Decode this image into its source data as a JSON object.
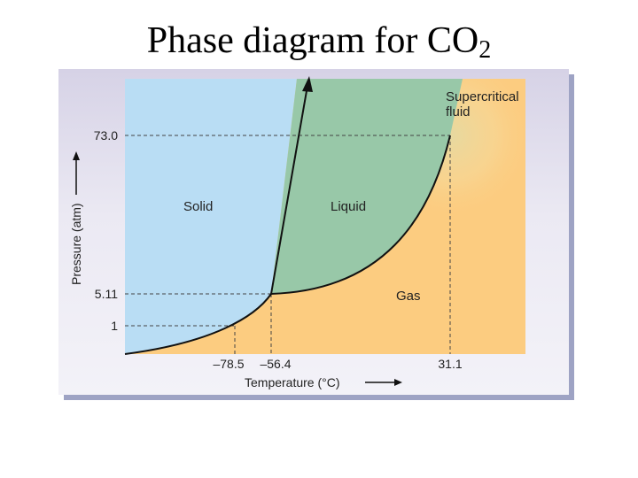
{
  "title": {
    "main": "Phase diagram for CO",
    "subscript": "2"
  },
  "axes": {
    "xlabel": "Temperature (°C)",
    "ylabel": "Pressure (atm)",
    "x_ticks": [
      "–78.5",
      "–56.4",
      "31.1"
    ],
    "y_ticks": [
      "73.0",
      "5.11",
      "1"
    ]
  },
  "regions": {
    "solid": "Solid",
    "liquid": "Liquid",
    "gas": "Gas",
    "supercritical_line1": "Supercritical",
    "supercritical_line2": "fluid"
  },
  "points": {
    "sublimation_point": {
      "temperature_c": -78.5,
      "pressure_atm": 1
    },
    "triple_point": {
      "temperature_c": -56.4,
      "pressure_atm": 5.11
    },
    "critical_point": {
      "temperature_c": 31.1,
      "pressure_atm": 73.0
    }
  },
  "colors": {
    "solid": "#b9ddf4",
    "liquid": "#98c8a8",
    "gas": "#fccc80",
    "curve": "#111111",
    "guide": "#444444"
  }
}
